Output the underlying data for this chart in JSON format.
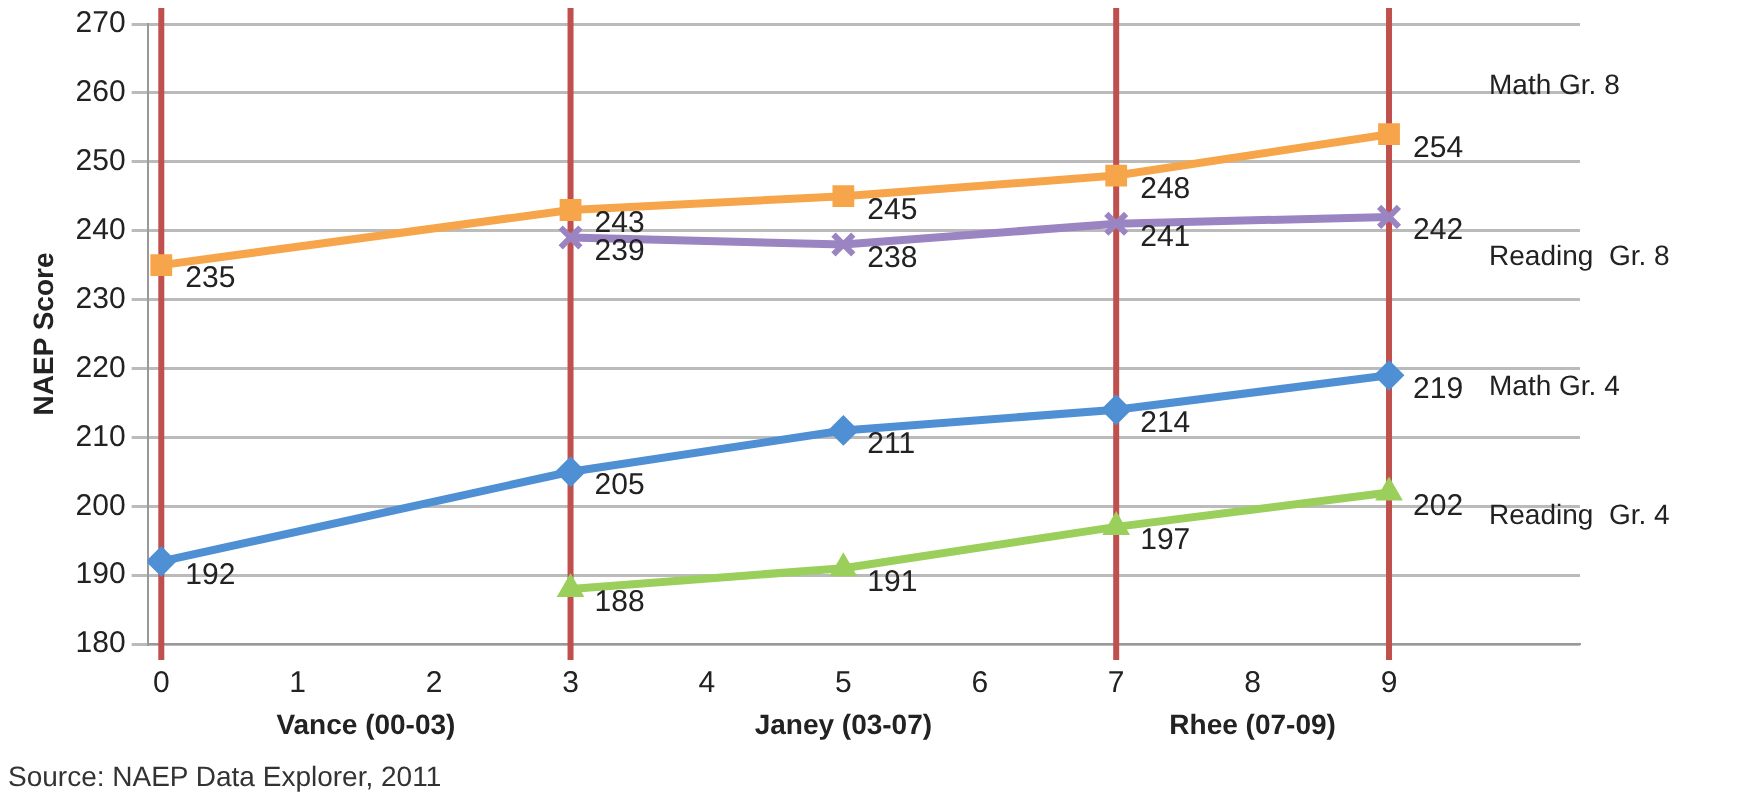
{
  "chart_data": {
    "type": "line",
    "ylabel": "NAEP Score",
    "xlim": [
      -0.1,
      10.4
    ],
    "xticks": [
      0,
      1,
      2,
      3,
      4,
      5,
      6,
      7,
      8,
      9
    ],
    "ylim": [
      180,
      270
    ],
    "yticks": [
      180,
      190,
      200,
      210,
      220,
      230,
      240,
      250,
      260,
      270
    ],
    "grid": "y",
    "legend": false,
    "data_labels": true,
    "line_style": "solid",
    "series": [
      {
        "name": "Math Gr. 8",
        "color": "#f7a54a",
        "marker": "square",
        "x": [
          0,
          3,
          5,
          7,
          9
        ],
        "values": [
          235,
          243,
          245,
          248,
          254
        ]
      },
      {
        "name": "Reading  Gr. 8",
        "color": "#9b84c2",
        "marker": "cross",
        "x": [
          3,
          5,
          7,
          9
        ],
        "values": [
          239,
          238,
          241,
          242
        ]
      },
      {
        "name": "Math Gr. 4",
        "color": "#4f8fd3",
        "marker": "diamond",
        "x": [
          0,
          3,
          5,
          7,
          9
        ],
        "values": [
          192,
          205,
          211,
          214,
          219
        ]
      },
      {
        "name": "Reading  Gr. 4",
        "color": "#9bcf5c",
        "marker": "triangle",
        "x": [
          3,
          5,
          7,
          9
        ],
        "values": [
          188,
          191,
          197,
          202
        ]
      }
    ],
    "ref_lines": [
      {
        "axis": "x",
        "value": 0,
        "color": "#c0504d"
      },
      {
        "axis": "x",
        "value": 3,
        "color": "#c0504d"
      },
      {
        "axis": "x",
        "value": 7,
        "color": "#c0504d"
      },
      {
        "axis": "x",
        "value": 9,
        "color": "#c0504d"
      }
    ],
    "annotations": [
      "Vance (00-03)",
      "Janey (03-07)",
      "Rhee (07-09)",
      "Source: NAEP Data Explorer, 2011"
    ]
  }
}
